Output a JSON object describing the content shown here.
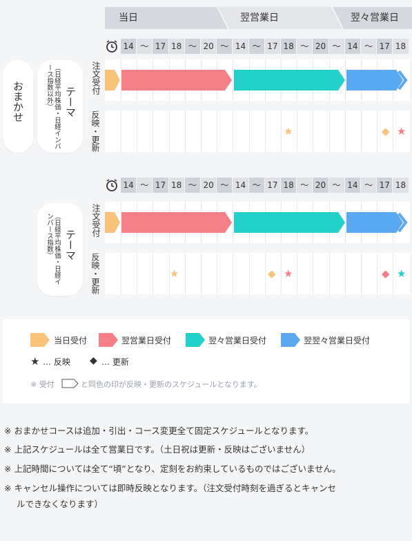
{
  "header": {
    "today": "当日",
    "next_day": "翌営業日",
    "day_after": "翌々営業日"
  },
  "time_row": [
    "14",
    "～",
    "17",
    "18",
    "～",
    "20",
    "～",
    "14",
    "～",
    "17",
    "18",
    "～",
    "20",
    "～",
    "14",
    "～",
    "17",
    "18"
  ],
  "course": {
    "label": "おまかせ"
  },
  "section1": {
    "theme_label": "テーマ",
    "theme_note": "（日経平均株価・日経インバース指数以外）",
    "order_label": "注文受付",
    "reflect_label": "反映・更新"
  },
  "section2": {
    "theme_label": "テーマ",
    "theme_note": "（日経平均株価・日経インバース指数）",
    "order_label": "注文受付",
    "reflect_label": "反映・更新"
  },
  "legend": {
    "today_label": "当日受付",
    "next_label": "翌営業日受付",
    "day_after_label": "翌々営業日受付",
    "day_after_next_label": "翌翌々営業日受付",
    "star_label": "… 反映",
    "diamond_label": "… 更新",
    "footnote_prefix": "※ 受付",
    "footnote_suffix": "と同色の印が反映・更新のスケジュールとなります。"
  },
  "colors": {
    "today": "#f9c27a",
    "next": "#f57f87",
    "day_after": "#22d1c9",
    "day_after_next": "#5aa9f0"
  },
  "notes": [
    "※ おまかせコースは追加・引出・コース変更全て固定スケジュールとなります。",
    "※ 上記スケジュールは全て営業日です。（土日祝は更新・反映はございません）",
    "※ 上記時間については全て“頃”となり、定刻をお約束しているものではございません。",
    "※ キャンセル操作については即時反映となります。（注文受付時刻を過ぎるとキャンセ",
    "ルできなくなります）"
  ]
}
